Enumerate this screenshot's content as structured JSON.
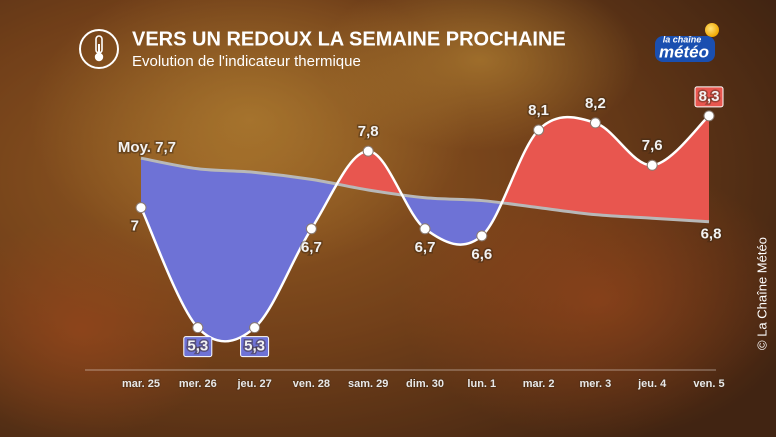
{
  "header": {
    "title": "VERS UN REDOUX LA SEMAINE PROCHAINE",
    "subtitle": "Evolution de l'indicateur thermique",
    "logo_top": "la chaîne",
    "logo_main": "météo"
  },
  "credit": "© La Chaîne Météo",
  "chart_data": {
    "type": "line",
    "categories": [
      "mar. 25",
      "mer. 26",
      "jeu. 27",
      "ven. 28",
      "sam. 29",
      "dim. 30",
      "lun. 1",
      "mar. 2",
      "mer. 3",
      "jeu. 4",
      "ven. 5"
    ],
    "series": [
      {
        "name": "Indicateur thermique",
        "color": "#ffffff",
        "values": [
          7,
          5.3,
          5.3,
          6.7,
          7.8,
          6.7,
          6.6,
          8.1,
          8.2,
          7.6,
          8.3
        ],
        "value_labels": [
          "7",
          "5,3",
          "5,3",
          "6,7",
          "7,8",
          "6,7",
          "6,6",
          "8,1",
          "8,2",
          "7,6",
          "8,3"
        ]
      },
      {
        "name": "Moyenne",
        "color": "#b8b8b8",
        "values": [
          7.7,
          7.55,
          7.5,
          7.4,
          7.25,
          7.14,
          7.1,
          7.0,
          6.9,
          6.85,
          6.8
        ],
        "value_labels": [
          "Moy. 7,7",
          null,
          null,
          null,
          null,
          null,
          null,
          null,
          null,
          null,
          "6,8"
        ]
      }
    ],
    "above_color": "#e8564f",
    "below_color": "#6e72d6",
    "ylim": [
      4.7,
      8.7
    ]
  }
}
